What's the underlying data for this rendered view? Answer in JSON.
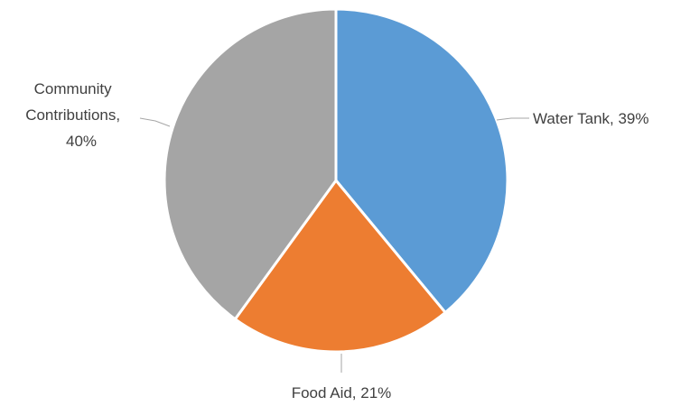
{
  "chart_data": {
    "type": "pie",
    "title": "",
    "legend": "none",
    "start_angle_deg": 0,
    "direction": "clockwise",
    "slices": [
      {
        "name": "Water Tank",
        "value": 39,
        "label": "Water Tank, 39%",
        "color": "#5b9bd5"
      },
      {
        "name": "Food Aid",
        "value": 21,
        "label": "Food Aid, 21%",
        "color": "#ed7d31"
      },
      {
        "name": "Community Contributions",
        "value": 40,
        "label_lines": [
          "Community",
          "Contributions,",
          "40%"
        ],
        "color": "#a5a5a5"
      }
    ]
  }
}
